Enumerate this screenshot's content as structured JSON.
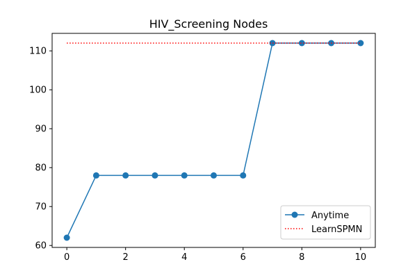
{
  "chart_data": {
    "type": "line",
    "title": "HIV_Screening Nodes",
    "xlabel": "",
    "ylabel": "",
    "xlim": [
      -0.5,
      10.5
    ],
    "ylim": [
      59.5,
      114.5
    ],
    "x_ticks": [
      0,
      2,
      4,
      6,
      8,
      10
    ],
    "y_ticks": [
      60,
      70,
      80,
      90,
      100,
      110
    ],
    "grid": false,
    "legend_position": "lower-right",
    "series": [
      {
        "name": "Anytime",
        "style": "solid-with-circle-markers",
        "color": "#1f77b4",
        "x": [
          0,
          1,
          2,
          3,
          4,
          5,
          6,
          7,
          8,
          9,
          10
        ],
        "y": [
          62,
          78,
          78,
          78,
          78,
          78,
          78,
          112,
          112,
          112,
          112
        ]
      },
      {
        "name": "LearnSPMN",
        "style": "dotted",
        "color": "#ff0000",
        "x": [
          0,
          10
        ],
        "y": [
          112,
          112
        ]
      }
    ]
  }
}
